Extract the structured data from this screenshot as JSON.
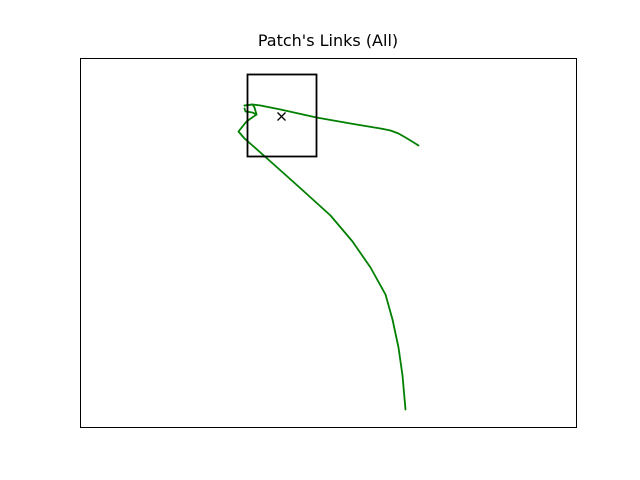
{
  "chart_data": {
    "type": "line",
    "title": "Patch's Links (All)",
    "grid": false,
    "axes_visible": false,
    "xlim": [
      0,
      496
    ],
    "ylim": [
      0,
      369
    ],
    "series": [
      {
        "color": "#008000",
        "points": [
          [
            164,
            322
          ],
          [
            172,
            323
          ],
          [
            180,
            322
          ],
          [
            200,
            318
          ],
          [
            236,
            310
          ],
          [
            270,
            304
          ],
          [
            300,
            299
          ],
          [
            310,
            297
          ],
          [
            318,
            294
          ],
          [
            325,
            290
          ],
          [
            330,
            287
          ],
          [
            338,
            282
          ]
        ]
      },
      {
        "color": "#008000",
        "points": [
          [
            164,
            322
          ],
          [
            172,
            323
          ],
          [
            174,
            320
          ],
          [
            176,
            313
          ],
          [
            172,
            315
          ],
          [
            165,
            316
          ],
          [
            164,
            319
          ]
        ]
      },
      {
        "color": "#008000",
        "points": [
          [
            176,
            313
          ],
          [
            166,
            306
          ],
          [
            158,
            296
          ],
          [
            164,
            289
          ],
          [
            172,
            282
          ],
          [
            190,
            266
          ],
          [
            218,
            241
          ],
          [
            250,
            212
          ],
          [
            272,
            186
          ],
          [
            290,
            160
          ],
          [
            305,
            133
          ],
          [
            312,
            108
          ],
          [
            318,
            80
          ],
          [
            322,
            52
          ],
          [
            325,
            18
          ]
        ]
      }
    ],
    "annotations": [
      {
        "type": "rect",
        "x": [
          167,
          236
        ],
        "y": [
          271,
          353
        ],
        "color": "#000000"
      },
      {
        "type": "marker",
        "marker": "x",
        "x": 201,
        "y": 311,
        "color": "#000000"
      }
    ]
  }
}
